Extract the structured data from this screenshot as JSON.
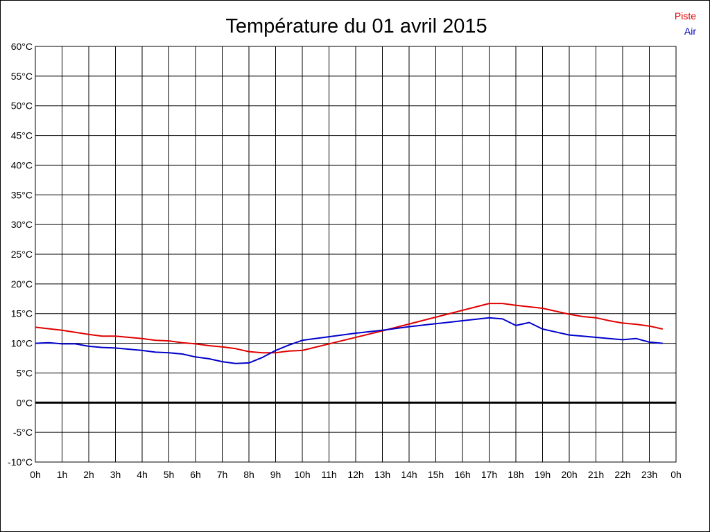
{
  "chart_data": {
    "type": "line",
    "title": "Température du 01 avril 2015",
    "x_tick_labels": [
      "0h",
      "1h",
      "2h",
      "3h",
      "4h",
      "5h",
      "6h",
      "7h",
      "8h",
      "9h",
      "10h",
      "11h",
      "12h",
      "13h",
      "14h",
      "15h",
      "16h",
      "17h",
      "18h",
      "19h",
      "20h",
      "21h",
      "22h",
      "23h",
      "0h"
    ],
    "y_tick_labels": [
      "60°C",
      "55°C",
      "50°C",
      "45°C",
      "40°C",
      "35°C",
      "30°C",
      "25°C",
      "20°C",
      "15°C",
      "10°C",
      "5°C",
      "0°C",
      "-5°C",
      "-10°C"
    ],
    "xlim": [
      0,
      24
    ],
    "ylim": [
      -10,
      60
    ],
    "y_step": 5,
    "grid": true,
    "zero_line": true,
    "legend_position": "top-right",
    "series": [
      {
        "name": "Piste",
        "color": "#e00000",
        "x": [
          0,
          1,
          2,
          2.5,
          3,
          3.5,
          4,
          4.5,
          5,
          5.5,
          6,
          6.5,
          7,
          7.5,
          8,
          8.5,
          9,
          9.5,
          10,
          13,
          17,
          17.5,
          18,
          19,
          20,
          20.5,
          21,
          21.5,
          22,
          22.5,
          23,
          23.5
        ],
        "y": [
          12.7,
          12.2,
          11.5,
          11.2,
          11.2,
          11.0,
          10.8,
          10.5,
          10.4,
          10.1,
          9.9,
          9.6,
          9.4,
          9.1,
          8.6,
          8.4,
          8.4,
          8.7,
          8.8,
          12.1,
          16.7,
          16.7,
          16.4,
          15.9,
          14.9,
          14.5,
          14.3,
          13.8,
          13.4,
          13.2,
          12.9,
          12.4
        ]
      },
      {
        "name": "Air",
        "color": "#0000cc",
        "x": [
          0,
          0.5,
          1,
          1.5,
          2,
          2.5,
          3,
          3.5,
          4,
          4.5,
          5,
          5.5,
          6,
          6.5,
          7,
          7.5,
          8,
          8.5,
          9,
          9.5,
          10,
          11,
          12,
          13,
          14,
          15,
          16,
          17,
          17.5,
          18,
          18.5,
          19,
          19.5,
          20,
          20.5,
          21,
          21.5,
          22,
          22.5,
          23,
          23.5
        ],
        "y": [
          10.0,
          10.1,
          9.9,
          9.9,
          9.5,
          9.3,
          9.2,
          9.0,
          8.8,
          8.5,
          8.4,
          8.2,
          7.7,
          7.4,
          6.9,
          6.6,
          6.7,
          7.6,
          8.8,
          9.7,
          10.5,
          11.1,
          11.7,
          12.2,
          12.8,
          13.3,
          13.8,
          14.3,
          14.1,
          13.0,
          13.5,
          12.4,
          11.9,
          11.4,
          11.2,
          11.0,
          10.8,
          10.6,
          10.8,
          10.2,
          10.0
        ]
      }
    ]
  }
}
